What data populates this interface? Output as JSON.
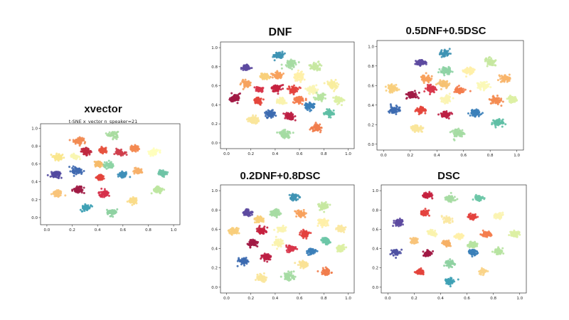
{
  "chart_data": [
    {
      "id": "xvector",
      "type": "scatter",
      "title": "xvector",
      "subtitle": "t-SNE x_vector n_speaker=21",
      "xlim": [
        -0.05,
        1.05
      ],
      "ylim": [
        -0.08,
        1.05
      ],
      "xticks": [
        "0.0",
        "0.2",
        "0.4",
        "0.6",
        "0.8",
        "1.0"
      ],
      "yticks": [
        "0.0",
        "0.2",
        "0.4",
        "0.6",
        "0.8",
        "1.0"
      ],
      "clusters": [
        {
          "x": 0.52,
          "y": 0.93,
          "color": "#a8dba0",
          "r": 0.038
        },
        {
          "x": 0.25,
          "y": 0.86,
          "color": "#f28b52",
          "r": 0.036
        },
        {
          "x": 0.31,
          "y": 0.74,
          "color": "#c0293f",
          "r": 0.035
        },
        {
          "x": 0.44,
          "y": 0.75,
          "color": "#e7533f",
          "r": 0.028
        },
        {
          "x": 0.58,
          "y": 0.73,
          "color": "#cf3f4c",
          "r": 0.03
        },
        {
          "x": 0.69,
          "y": 0.77,
          "color": "#f48a51",
          "r": 0.032
        },
        {
          "x": 0.84,
          "y": 0.73,
          "color": "#ffffbd",
          "r": 0.036
        },
        {
          "x": 0.09,
          "y": 0.68,
          "color": "#f9e68c",
          "r": 0.035
        },
        {
          "x": 0.22,
          "y": 0.68,
          "color": "#f8f6b1",
          "r": 0.025
        },
        {
          "x": 0.41,
          "y": 0.6,
          "color": "#f6bb6a",
          "r": 0.034
        },
        {
          "x": 0.49,
          "y": 0.58,
          "color": "#8dd4a4",
          "r": 0.035
        },
        {
          "x": 0.07,
          "y": 0.48,
          "color": "#5249a0",
          "r": 0.036
        },
        {
          "x": 0.24,
          "y": 0.52,
          "color": "#3f69b0",
          "r": 0.036
        },
        {
          "x": 0.6,
          "y": 0.48,
          "color": "#3e8fb8",
          "r": 0.03
        },
        {
          "x": 0.72,
          "y": 0.52,
          "color": "#f7b069",
          "r": 0.028
        },
        {
          "x": 0.91,
          "y": 0.5,
          "color": "#6fc4a6",
          "r": 0.032
        },
        {
          "x": 0.42,
          "y": 0.45,
          "color": "#e3443c",
          "r": 0.026
        },
        {
          "x": 0.08,
          "y": 0.27,
          "color": "#f8c47a",
          "r": 0.033
        },
        {
          "x": 0.25,
          "y": 0.31,
          "color": "#a01c45",
          "r": 0.036
        },
        {
          "x": 0.45,
          "y": 0.27,
          "color": "#d6314b",
          "r": 0.032
        },
        {
          "x": 0.68,
          "y": 0.19,
          "color": "#fadb8a",
          "r": 0.03
        },
        {
          "x": 0.88,
          "y": 0.31,
          "color": "#bce5a0",
          "r": 0.033
        },
        {
          "x": 0.31,
          "y": 0.11,
          "color": "#3ea1b5",
          "r": 0.033
        },
        {
          "x": 0.51,
          "y": 0.06,
          "color": "#8fd1a2",
          "r": 0.033
        }
      ]
    },
    {
      "id": "dnf",
      "type": "scatter",
      "title": "DNF",
      "xlim": [
        -0.05,
        1.05
      ],
      "ylim": [
        -0.06,
        1.06
      ],
      "xticks": [
        "0.0",
        "0.2",
        "0.4",
        "0.6",
        "0.8",
        "1.0"
      ],
      "yticks": [
        "0.0",
        "0.2",
        "0.4",
        "0.6",
        "0.8",
        "1.0"
      ],
      "clusters": [
        {
          "x": 0.43,
          "y": 0.92,
          "color": "#3f93b4",
          "r": 0.035
        },
        {
          "x": 0.53,
          "y": 0.83,
          "color": "#a6dba3",
          "r": 0.042
        },
        {
          "x": 0.73,
          "y": 0.8,
          "color": "#c7e8a1",
          "r": 0.04
        },
        {
          "x": 0.16,
          "y": 0.79,
          "color": "#5d4aa0",
          "r": 0.032
        },
        {
          "x": 0.42,
          "y": 0.71,
          "color": "#f7a15c",
          "r": 0.035
        },
        {
          "x": 0.6,
          "y": 0.7,
          "color": "#fff0a8",
          "r": 0.038
        },
        {
          "x": 0.31,
          "y": 0.7,
          "color": "#f8cf7a",
          "r": 0.03
        },
        {
          "x": 0.16,
          "y": 0.62,
          "color": "#f6a35e",
          "r": 0.035
        },
        {
          "x": 0.41,
          "y": 0.57,
          "color": "#c5213f",
          "r": 0.036
        },
        {
          "x": 0.55,
          "y": 0.56,
          "color": "#e3433e",
          "r": 0.036
        },
        {
          "x": 0.7,
          "y": 0.56,
          "color": "#f9f5b5",
          "r": 0.04
        },
        {
          "x": 0.87,
          "y": 0.61,
          "color": "#f8ed9e",
          "r": 0.036
        },
        {
          "x": 0.27,
          "y": 0.56,
          "color": "#d8354a",
          "r": 0.03
        },
        {
          "x": 0.07,
          "y": 0.47,
          "color": "#a11a45",
          "r": 0.038
        },
        {
          "x": 0.26,
          "y": 0.44,
          "color": "#e4463c",
          "r": 0.034
        },
        {
          "x": 0.45,
          "y": 0.44,
          "color": "#f9f3ad",
          "r": 0.034
        },
        {
          "x": 0.6,
          "y": 0.45,
          "color": "#f47d4e",
          "r": 0.035
        },
        {
          "x": 0.77,
          "y": 0.48,
          "color": "#b7e3a1",
          "r": 0.035
        },
        {
          "x": 0.92,
          "y": 0.45,
          "color": "#ddf0a4",
          "r": 0.034
        },
        {
          "x": 0.68,
          "y": 0.39,
          "color": "#3b7fb9",
          "r": 0.036
        },
        {
          "x": 0.36,
          "y": 0.3,
          "color": "#3c6ab0",
          "r": 0.036
        },
        {
          "x": 0.52,
          "y": 0.28,
          "color": "#bc1f44",
          "r": 0.036
        },
        {
          "x": 0.84,
          "y": 0.31,
          "color": "#5fbfa5",
          "r": 0.035
        },
        {
          "x": 0.22,
          "y": 0.24,
          "color": "#fae69b",
          "r": 0.038
        },
        {
          "x": 0.74,
          "y": 0.16,
          "color": "#f17d4c",
          "r": 0.037
        },
        {
          "x": 0.48,
          "y": 0.1,
          "color": "#a5dca3",
          "r": 0.042
        }
      ]
    },
    {
      "id": "mix05",
      "type": "scatter",
      "title": "0.5DNF+0.5DSC",
      "xlim": [
        -0.05,
        1.05
      ],
      "ylim": [
        -0.06,
        1.06
      ],
      "xticks": [
        "0.0",
        "0.2",
        "0.4",
        "0.6",
        "0.8",
        "1.0"
      ],
      "yticks": [
        "0.0",
        "0.2",
        "0.4",
        "0.6",
        "0.8",
        "1.0"
      ],
      "clusters": [
        {
          "x": 0.46,
          "y": 0.93,
          "color": "#3f93b4",
          "r": 0.035
        },
        {
          "x": 0.28,
          "y": 0.83,
          "color": "#5d4aa0",
          "r": 0.033
        },
        {
          "x": 0.8,
          "y": 0.84,
          "color": "#c7e8a1",
          "r": 0.038
        },
        {
          "x": 0.47,
          "y": 0.75,
          "color": "#8ed3a5",
          "r": 0.04
        },
        {
          "x": 0.64,
          "y": 0.75,
          "color": "#fff0a8",
          "r": 0.035
        },
        {
          "x": 0.32,
          "y": 0.67,
          "color": "#f7a15c",
          "r": 0.035
        },
        {
          "x": 0.91,
          "y": 0.67,
          "color": "#f8b56b",
          "r": 0.035
        },
        {
          "x": 0.45,
          "y": 0.61,
          "color": "#f6c273",
          "r": 0.035
        },
        {
          "x": 0.35,
          "y": 0.57,
          "color": "#d8354a",
          "r": 0.034
        },
        {
          "x": 0.06,
          "y": 0.57,
          "color": "#f8ce7c",
          "r": 0.036
        },
        {
          "x": 0.22,
          "y": 0.5,
          "color": "#a11a45",
          "r": 0.038
        },
        {
          "x": 0.57,
          "y": 0.55,
          "color": "#f47d4e",
          "r": 0.036
        },
        {
          "x": 0.75,
          "y": 0.6,
          "color": "#fbf8b8",
          "r": 0.04
        },
        {
          "x": 0.47,
          "y": 0.46,
          "color": "#fbf4b2",
          "r": 0.034
        },
        {
          "x": 0.84,
          "y": 0.45,
          "color": "#f48c52",
          "r": 0.036
        },
        {
          "x": 0.96,
          "y": 0.46,
          "color": "#ddf0a4",
          "r": 0.033
        },
        {
          "x": 0.08,
          "y": 0.35,
          "color": "#3c6ab0",
          "r": 0.036
        },
        {
          "x": 0.28,
          "y": 0.35,
          "color": "#e4463c",
          "r": 0.033
        },
        {
          "x": 0.47,
          "y": 0.3,
          "color": "#bc1f44",
          "r": 0.035
        },
        {
          "x": 0.69,
          "y": 0.32,
          "color": "#3b7fb9",
          "r": 0.036
        },
        {
          "x": 0.86,
          "y": 0.22,
          "color": "#5fbfa5",
          "r": 0.035
        },
        {
          "x": 0.25,
          "y": 0.16,
          "color": "#fae69b",
          "r": 0.036
        },
        {
          "x": 0.56,
          "y": 0.11,
          "color": "#a5dca3",
          "r": 0.042
        }
      ]
    },
    {
      "id": "mix02",
      "type": "scatter",
      "title": "0.2DNF+0.8DSC",
      "xlim": [
        -0.05,
        1.05
      ],
      "ylim": [
        -0.06,
        1.06
      ],
      "xticks": [
        "0.0",
        "0.2",
        "0.4",
        "0.6",
        "0.8",
        "1.0"
      ],
      "yticks": [
        "0.0",
        "0.2",
        "0.4",
        "0.6",
        "0.8",
        "1.0"
      ],
      "clusters": [
        {
          "x": 0.55,
          "y": 0.93,
          "color": "#3f93b4",
          "r": 0.035
        },
        {
          "x": 0.8,
          "y": 0.84,
          "color": "#c7e8a1",
          "r": 0.036
        },
        {
          "x": 0.17,
          "y": 0.77,
          "color": "#5d4aa0",
          "r": 0.03
        },
        {
          "x": 0.4,
          "y": 0.77,
          "color": "#a6dba3",
          "r": 0.04
        },
        {
          "x": 0.61,
          "y": 0.76,
          "color": "#f7a15c",
          "r": 0.035
        },
        {
          "x": 0.27,
          "y": 0.7,
          "color": "#f8cf7a",
          "r": 0.03
        },
        {
          "x": 0.79,
          "y": 0.67,
          "color": "#fff0a8",
          "r": 0.036
        },
        {
          "x": 0.06,
          "y": 0.58,
          "color": "#f8ce7c",
          "r": 0.035
        },
        {
          "x": 0.29,
          "y": 0.58,
          "color": "#c5213f",
          "r": 0.035
        },
        {
          "x": 0.45,
          "y": 0.6,
          "color": "#fbf4b2",
          "r": 0.033
        },
        {
          "x": 0.64,
          "y": 0.55,
          "color": "#e3433e",
          "r": 0.034
        },
        {
          "x": 0.94,
          "y": 0.6,
          "color": "#fbe8a2",
          "r": 0.034
        },
        {
          "x": 0.21,
          "y": 0.46,
          "color": "#a11a45",
          "r": 0.036
        },
        {
          "x": 0.42,
          "y": 0.46,
          "color": "#f9f3ad",
          "r": 0.033
        },
        {
          "x": 0.82,
          "y": 0.48,
          "color": "#6dc6a7",
          "r": 0.033
        },
        {
          "x": 0.53,
          "y": 0.4,
          "color": "#d8354a",
          "r": 0.033
        },
        {
          "x": 0.7,
          "y": 0.37,
          "color": "#3b7fb9",
          "r": 0.032
        },
        {
          "x": 0.94,
          "y": 0.4,
          "color": "#ddf0a4",
          "r": 0.032
        },
        {
          "x": 0.14,
          "y": 0.27,
          "color": "#3c6ab0",
          "r": 0.034
        },
        {
          "x": 0.33,
          "y": 0.31,
          "color": "#bc1f44",
          "r": 0.034
        },
        {
          "x": 0.63,
          "y": 0.24,
          "color": "#f9e296",
          "r": 0.034
        },
        {
          "x": 0.82,
          "y": 0.16,
          "color": "#f17d4c",
          "r": 0.035
        },
        {
          "x": 0.29,
          "y": 0.1,
          "color": "#fae69b",
          "r": 0.036
        },
        {
          "x": 0.51,
          "y": 0.11,
          "color": "#a5dca3",
          "r": 0.04
        }
      ]
    },
    {
      "id": "dsc",
      "type": "scatter",
      "title": "DSC",
      "xlim": [
        -0.05,
        1.05
      ],
      "ylim": [
        -0.06,
        1.06
      ],
      "xticks": [
        "0.0",
        "0.2",
        "0.4",
        "0.6",
        "0.8",
        "1.0"
      ],
      "yticks": [
        "0.0",
        "0.2",
        "0.4",
        "0.6",
        "0.8",
        "1.0"
      ],
      "clusters": [
        {
          "x": 0.3,
          "y": 0.95,
          "color": "#c5213f",
          "r": 0.028
        },
        {
          "x": 0.47,
          "y": 0.92,
          "color": "#a6dba3",
          "r": 0.035
        },
        {
          "x": 0.69,
          "y": 0.92,
          "color": "#6dc6a7",
          "r": 0.028
        },
        {
          "x": 0.27,
          "y": 0.77,
          "color": "#e3433e",
          "r": 0.027
        },
        {
          "x": 0.64,
          "y": 0.73,
          "color": "#e3433e",
          "r": 0.027
        },
        {
          "x": 0.84,
          "y": 0.74,
          "color": "#fbf4b2",
          "r": 0.03
        },
        {
          "x": 0.08,
          "y": 0.67,
          "color": "#5d4aa0",
          "r": 0.03
        },
        {
          "x": 0.45,
          "y": 0.7,
          "color": "#fbe8a2",
          "r": 0.03
        },
        {
          "x": 0.33,
          "y": 0.56,
          "color": "#f9f3ad",
          "r": 0.028
        },
        {
          "x": 0.54,
          "y": 0.53,
          "color": "#fff0a8",
          "r": 0.026
        },
        {
          "x": 0.75,
          "y": 0.55,
          "color": "#f47d4e",
          "r": 0.03
        },
        {
          "x": 0.96,
          "y": 0.55,
          "color": "#ddf0a4",
          "r": 0.03
        },
        {
          "x": 0.2,
          "y": 0.48,
          "color": "#f8c47a",
          "r": 0.027
        },
        {
          "x": 0.45,
          "y": 0.45,
          "color": "#f6b066",
          "r": 0.027
        },
        {
          "x": 0.65,
          "y": 0.44,
          "color": "#b7e3a1",
          "r": 0.028
        },
        {
          "x": 0.06,
          "y": 0.36,
          "color": "#4f51a3",
          "r": 0.03
        },
        {
          "x": 0.3,
          "y": 0.35,
          "color": "#a11a45",
          "r": 0.03
        },
        {
          "x": 0.64,
          "y": 0.36,
          "color": "#3b7fb9",
          "r": 0.028
        },
        {
          "x": 0.84,
          "y": 0.37,
          "color": "#b7e3a1",
          "r": 0.028
        },
        {
          "x": 0.47,
          "y": 0.24,
          "color": "#8fd1a2",
          "r": 0.032
        },
        {
          "x": 0.24,
          "y": 0.16,
          "color": "#e3443c",
          "r": 0.025
        },
        {
          "x": 0.72,
          "y": 0.16,
          "color": "#f9d48a",
          "r": 0.025
        },
        {
          "x": 0.47,
          "y": 0.06,
          "color": "#3ea1b5",
          "r": 0.03
        }
      ]
    }
  ]
}
